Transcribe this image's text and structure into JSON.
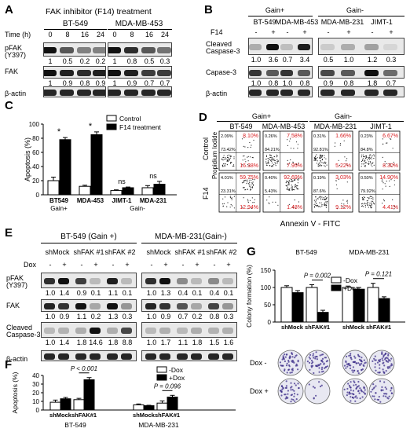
{
  "panels": {
    "A": {
      "label": "A",
      "title": "FAK inhibitor (F14) treatment",
      "time_label": "Time (h)",
      "groups": [
        "BT-549",
        "MDA-MB-453"
      ],
      "times": [
        "0",
        "8",
        "16",
        "24",
        "0",
        "8",
        "16",
        "24"
      ],
      "rows": [
        {
          "name": "pFAK",
          "sub": "(Y397)",
          "values": [
            "1",
            "0.5",
            "0.2",
            "0.2",
            "1",
            "0.8",
            "0.5",
            "0.3"
          ]
        },
        {
          "name": "FAK",
          "values": [
            "1",
            "0.9",
            "0.8",
            "0.9",
            "1",
            "0.9",
            "0.7",
            "0.7"
          ]
        },
        {
          "name": "β-actin"
        }
      ]
    },
    "B": {
      "label": "B",
      "headers": [
        "Gain+",
        "Gain-"
      ],
      "lines": [
        "BT-549",
        "MDA-MB-453",
        "MDA-MB-231",
        "JIMT-1"
      ],
      "treatment": "F14",
      "signs": [
        "-",
        "+",
        "-",
        "+",
        "-",
        "+",
        "-",
        "+"
      ],
      "rows": [
        {
          "name": "Cleaved",
          "sub": "Caspase-3",
          "values": [
            "1.0",
            "3.6",
            "0.7",
            "3.4",
            "0.5",
            "1.0",
            "1.2",
            "0.3"
          ]
        },
        {
          "name": "Capase-3",
          "values": [
            "1.0",
            "0.8",
            "1.0",
            "0.8",
            "0.9",
            "0.8",
            "1.8",
            "0.7"
          ]
        },
        {
          "name": "β-actin"
        }
      ]
    },
    "C": {
      "label": "C"
    },
    "D": {
      "label": "D",
      "headers": [
        "Gain+",
        "Gain-"
      ],
      "lines": [
        "BT-549",
        "MDA-MB-453",
        "MDA-MB-231",
        "JIMT-1"
      ],
      "y_title": "Propidium Iodide",
      "row_labels": [
        "Control",
        "F14"
      ],
      "x_title": "Annexin V - FITC",
      "quadrants": [
        {
          "tl": "2.09%",
          "tr": "8.10%",
          "bl": "73.42%",
          "br": "16.38%"
        },
        {
          "tl": "0.26%",
          "tr": "7.58%",
          "bl": "84.21%",
          "br": "7.95%"
        },
        {
          "tl": "0.31%",
          "tr": "1.66%",
          "bl": "92.81%",
          "br": "5.22%"
        },
        {
          "tl": "0.23%",
          "tr": "6.67%",
          "bl": "84.8%",
          "br": "8.30%"
        },
        {
          "tl": "4.01%",
          "tr": "59.75%",
          "bl": "23.31%",
          "br": "12.94%"
        },
        {
          "tl": "0.40%",
          "tr": "92.69%",
          "bl": "5.43%",
          "br": "1.48%"
        },
        {
          "tl": "0.19%",
          "tr": "3.03%",
          "bl": "87.6%",
          "br": "9.12%"
        },
        {
          "tl": "0.50%",
          "tr": "14.90%",
          "bl": "79.92%",
          "br": "4.41%"
        }
      ]
    },
    "E": {
      "label": "E",
      "groups": [
        "BT-549 (Gain +)",
        "MDA-MB-231(Gain-)"
      ],
      "shrna": [
        "shMock",
        "shFAK #1",
        "shFAK #2",
        "shMock",
        "shFAK #1",
        "shFAK #2"
      ],
      "dox_label": "Dox",
      "signs": [
        "-",
        "+",
        "-",
        "+",
        "-",
        "+",
        "-",
        "+",
        "-",
        "+",
        "-",
        "+"
      ],
      "rows": [
        {
          "name": "pFAK",
          "sub": "(Y397)",
          "values": [
            "1.0",
            "1.4",
            "0.9",
            "0.1",
            "1.1",
            "0.1",
            "1.0",
            "1.3",
            "0.4",
            "0.1",
            "0.4",
            "0.1"
          ]
        },
        {
          "name": "FAK",
          "values": [
            "1.0",
            "0.9",
            "1.1",
            "0.2",
            "1.3",
            "0.3",
            "1.0",
            "0.9",
            "0.7",
            "0.2",
            "0.8",
            "0.3"
          ]
        },
        {
          "name": "Cleaved",
          "sub": "Caspase-3",
          "values": [
            "1.0",
            "1.4",
            "1.8",
            "14.6",
            "1.8",
            "8.8",
            "1.0",
            "1.7",
            "1.1",
            "1.8",
            "1.5",
            "1.6"
          ]
        },
        {
          "name": "β-actin"
        }
      ]
    },
    "F": {
      "label": "F"
    },
    "G": {
      "label": "G",
      "dish_rows": [
        "Dox -",
        "Dox +"
      ]
    }
  },
  "chart_data": [
    {
      "id": "C",
      "type": "bar",
      "categories": [
        "BT549",
        "MDA-453",
        "JIMT-1",
        "MDA-231"
      ],
      "group_labels": [
        "Gain+",
        "Gain-"
      ],
      "series": [
        {
          "name": "Control",
          "values": [
            20,
            12,
            6,
            10
          ],
          "errors": [
            5,
            1.5,
            1,
            3
          ]
        },
        {
          "name": "F14 treatment",
          "values": [
            78,
            85,
            10,
            15
          ],
          "errors": [
            3,
            4,
            1,
            4
          ]
        }
      ],
      "annotations": [
        "*",
        "*",
        "ns",
        "ns"
      ],
      "ylabel": "Apoptosis (%)",
      "ylim": [
        0,
        100
      ],
      "yticks": [
        0,
        20,
        40,
        60,
        80,
        100
      ],
      "legend": "top-right"
    },
    {
      "id": "F",
      "type": "bar",
      "categories": [
        "shMock",
        "shFAK#1",
        "shMock",
        "shFAK#1"
      ],
      "group_labels": [
        "BT-549",
        "MDA-MB-231"
      ],
      "series": [
        {
          "name": "-Dox",
          "values": [
            9,
            12,
            6,
            8
          ],
          "errors": [
            2.5,
            1.5,
            1,
            2.5
          ]
        },
        {
          "name": "+Dox",
          "values": [
            13,
            35,
            5,
            15
          ],
          "errors": [
            1.5,
            2.5,
            0.5,
            2
          ]
        }
      ],
      "annotations": [
        {
          "text": "P < 0.001",
          "between": "BT-549 shFAK#1"
        },
        {
          "text": "P = 0.096",
          "between": "MDA-MB-231 shFAK#1"
        }
      ],
      "ylabel": "Apoptosis (%)",
      "ylim": [
        0,
        40
      ],
      "yticks": [
        0,
        10,
        20,
        30,
        40
      ],
      "legend": "top-right"
    },
    {
      "id": "G",
      "type": "bar",
      "categories": [
        "shMock",
        "shFAK#1",
        "shMock",
        "shFAK#1"
      ],
      "group_labels": [
        "BT-549",
        "MDA-MB-231"
      ],
      "series": [
        {
          "name": "-Dox",
          "values": [
            100,
            100,
            100,
            100
          ],
          "errors": [
            5,
            8,
            4,
            12
          ]
        },
        {
          "name": "+Dox",
          "values": [
            85,
            28,
            95,
            68
          ],
          "errors": [
            6,
            6,
            5,
            5
          ]
        }
      ],
      "annotations": [
        {
          "text": "P = 0.002",
          "between": "BT-549 shFAK#1"
        },
        {
          "text": "P = 0.121",
          "between": "MDA-MB-231 shFAK#1"
        }
      ],
      "ylabel": "Colony formation (%)",
      "ylim": [
        0,
        150
      ],
      "yticks": [
        0,
        50,
        100,
        150
      ],
      "legend": "top-right"
    }
  ]
}
